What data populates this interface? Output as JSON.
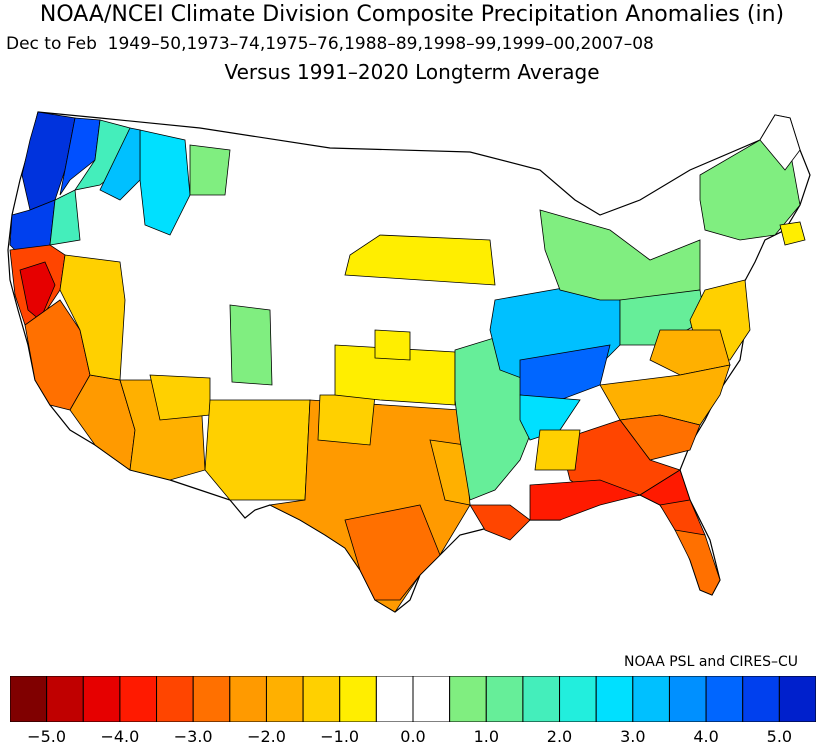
{
  "title": "NOAA/NCEI Climate Division Composite Precipitation Anomalies (in)",
  "subtitle": "Dec to Feb  1949–50,1973–74,1975–76,1988–89,1998–99,1999–00,2007–08",
  "comparison": "Versus 1991–2020 Longterm Average",
  "credit": "NOAA PSL and CIRES–CU",
  "colorbar": {
    "colors": [
      "#800000",
      "#c00000",
      "#e60000",
      "#ff1a00",
      "#ff4500",
      "#ff7000",
      "#ff9a00",
      "#ffb000",
      "#ffd000",
      "#ffee00",
      "#ffffff",
      "#ffffff",
      "#80ee80",
      "#66ee99",
      "#44eebb",
      "#22eedd",
      "#00e0ff",
      "#00c0ff",
      "#0090ff",
      "#0066ff",
      "#0040ee",
      "#0020cc"
    ],
    "tick_labels": [
      "−5.0",
      "−4.0",
      "−3.0",
      "−2.0",
      "−1.0",
      "0.0",
      "1.0",
      "2.0",
      "3.0",
      "4.0",
      "5.0"
    ]
  },
  "map_regions": [
    {
      "name": "washington-coast",
      "color": "#0033dd"
    },
    {
      "name": "puget-sound",
      "color": "#0050ff"
    },
    {
      "name": "washington-cascades",
      "color": "#00e0ff"
    },
    {
      "name": "oregon-coast",
      "color": "#0040ee"
    },
    {
      "name": "oregon-willamette",
      "color": "#44eebb"
    },
    {
      "name": "idaho-panhandle",
      "color": "#00e0ff"
    },
    {
      "name": "northern-california",
      "color": "#ff4500"
    },
    {
      "name": "north-coast-california",
      "color": "#e60000"
    },
    {
      "name": "central-california",
      "color": "#ff7000"
    },
    {
      "name": "southern-california",
      "color": "#ff7000"
    },
    {
      "name": "nevada",
      "color": "#ffd000"
    },
    {
      "name": "arizona",
      "color": "#ffb000"
    },
    {
      "name": "new-mexico",
      "color": "#ffd000"
    },
    {
      "name": "texas",
      "color": "#ff9a00"
    },
    {
      "name": "south-texas",
      "color": "#ff7000"
    },
    {
      "name": "oklahoma",
      "color": "#ffee00"
    },
    {
      "name": "kansas",
      "color": "#ffee00"
    },
    {
      "name": "dakotas",
      "color": "#ffee00"
    },
    {
      "name": "ohio-valley",
      "color": "#00c0ff"
    },
    {
      "name": "tennessee-valley",
      "color": "#0066ff"
    },
    {
      "name": "great-lakes",
      "color": "#80ee80"
    },
    {
      "name": "new-england",
      "color": "#80ee80"
    },
    {
      "name": "mid-atlantic",
      "color": "#ffd000"
    },
    {
      "name": "carolinas",
      "color": "#ffb000"
    },
    {
      "name": "georgia-alabama",
      "color": "#ff7000"
    },
    {
      "name": "gulf-coast",
      "color": "#ff1a00"
    },
    {
      "name": "north-florida",
      "color": "#ff1a00"
    },
    {
      "name": "south-florida",
      "color": "#ff7000"
    },
    {
      "name": "louisiana",
      "color": "#ff4500"
    },
    {
      "name": "mississippi-valley",
      "color": "#66ee99"
    }
  ]
}
